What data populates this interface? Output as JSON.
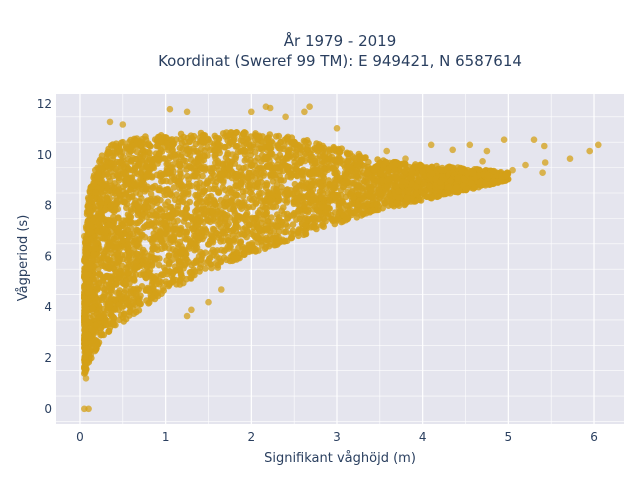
{
  "chart_data": {
    "type": "scatter",
    "title_line1": "År 1979 - 2019",
    "title_line2": "Koordinat (Sweref 99 TM): E 949421, N 6587614",
    "xlabel": "Signifikant våghöjd (m)",
    "ylabel": "Vågperiod (s)",
    "xlim": [
      -0.28,
      6.35
    ],
    "ylim": [
      -0.6,
      12.4
    ],
    "x_ticks": [
      0,
      1,
      2,
      3,
      4,
      5,
      6
    ],
    "y_ticks": [
      0,
      2,
      4,
      6,
      8,
      10,
      12
    ],
    "grid": true,
    "legend": "none",
    "marker_color": "#D4A017",
    "plot_bgcolor": "#E5E5EE",
    "outliers": [
      {
        "x": 0.05,
        "y": 6.8
      },
      {
        "x": 0.05,
        "y": 0.0
      },
      {
        "x": 0.1,
        "y": 0.0
      },
      {
        "x": 0.07,
        "y": 1.2
      },
      {
        "x": 2.17,
        "y": 11.9
      },
      {
        "x": 2.22,
        "y": 11.85
      },
      {
        "x": 2.68,
        "y": 11.9
      },
      {
        "x": 2.62,
        "y": 11.7
      },
      {
        "x": 2.0,
        "y": 11.7
      },
      {
        "x": 2.4,
        "y": 11.5
      },
      {
        "x": 1.25,
        "y": 11.7
      },
      {
        "x": 1.05,
        "y": 11.8
      },
      {
        "x": 3.0,
        "y": 11.05
      },
      {
        "x": 4.95,
        "y": 10.6
      },
      {
        "x": 5.3,
        "y": 10.6
      },
      {
        "x": 5.42,
        "y": 10.35
      },
      {
        "x": 5.72,
        "y": 9.85
      },
      {
        "x": 5.95,
        "y": 10.15
      },
      {
        "x": 6.05,
        "y": 10.4
      },
      {
        "x": 5.43,
        "y": 9.7
      },
      {
        "x": 5.2,
        "y": 9.6
      },
      {
        "x": 5.05,
        "y": 9.4
      },
      {
        "x": 5.4,
        "y": 9.3
      },
      {
        "x": 4.75,
        "y": 10.15
      },
      {
        "x": 4.7,
        "y": 9.75
      },
      {
        "x": 4.55,
        "y": 10.4
      },
      {
        "x": 4.35,
        "y": 10.2
      },
      {
        "x": 4.1,
        "y": 10.4
      },
      {
        "x": 3.8,
        "y": 9.85
      },
      {
        "x": 3.58,
        "y": 10.15
      },
      {
        "x": 1.3,
        "y": 3.9
      },
      {
        "x": 1.25,
        "y": 3.65
      },
      {
        "x": 1.5,
        "y": 4.2
      },
      {
        "x": 1.65,
        "y": 4.7
      },
      {
        "x": 0.35,
        "y": 11.3
      },
      {
        "x": 0.5,
        "y": 11.2
      }
    ],
    "density_band": {
      "description": "dense scatter cloud",
      "lower_curve": [
        [
          0.05,
          1.3
        ],
        [
          0.1,
          1.8
        ],
        [
          0.2,
          2.4
        ],
        [
          0.3,
          2.9
        ],
        [
          0.5,
          3.4
        ],
        [
          0.75,
          4.0
        ],
        [
          1.0,
          4.6
        ],
        [
          1.5,
          5.4
        ],
        [
          2.0,
          6.1
        ],
        [
          2.5,
          6.7
        ],
        [
          3.0,
          7.3
        ],
        [
          3.5,
          7.8
        ],
        [
          4.0,
          8.2
        ],
        [
          4.5,
          8.6
        ],
        [
          5.0,
          9.0
        ]
      ],
      "upper_curve": [
        [
          0.05,
          6.0
        ],
        [
          0.1,
          8.6
        ],
        [
          0.2,
          9.8
        ],
        [
          0.4,
          10.5
        ],
        [
          0.7,
          10.7
        ],
        [
          1.0,
          10.8
        ],
        [
          1.5,
          10.9
        ],
        [
          2.0,
          10.9
        ],
        [
          2.5,
          10.7
        ],
        [
          3.0,
          10.3
        ],
        [
          3.5,
          9.8
        ],
        [
          4.0,
          9.6
        ],
        [
          4.5,
          9.5
        ],
        [
          5.0,
          9.3
        ]
      ]
    }
  }
}
